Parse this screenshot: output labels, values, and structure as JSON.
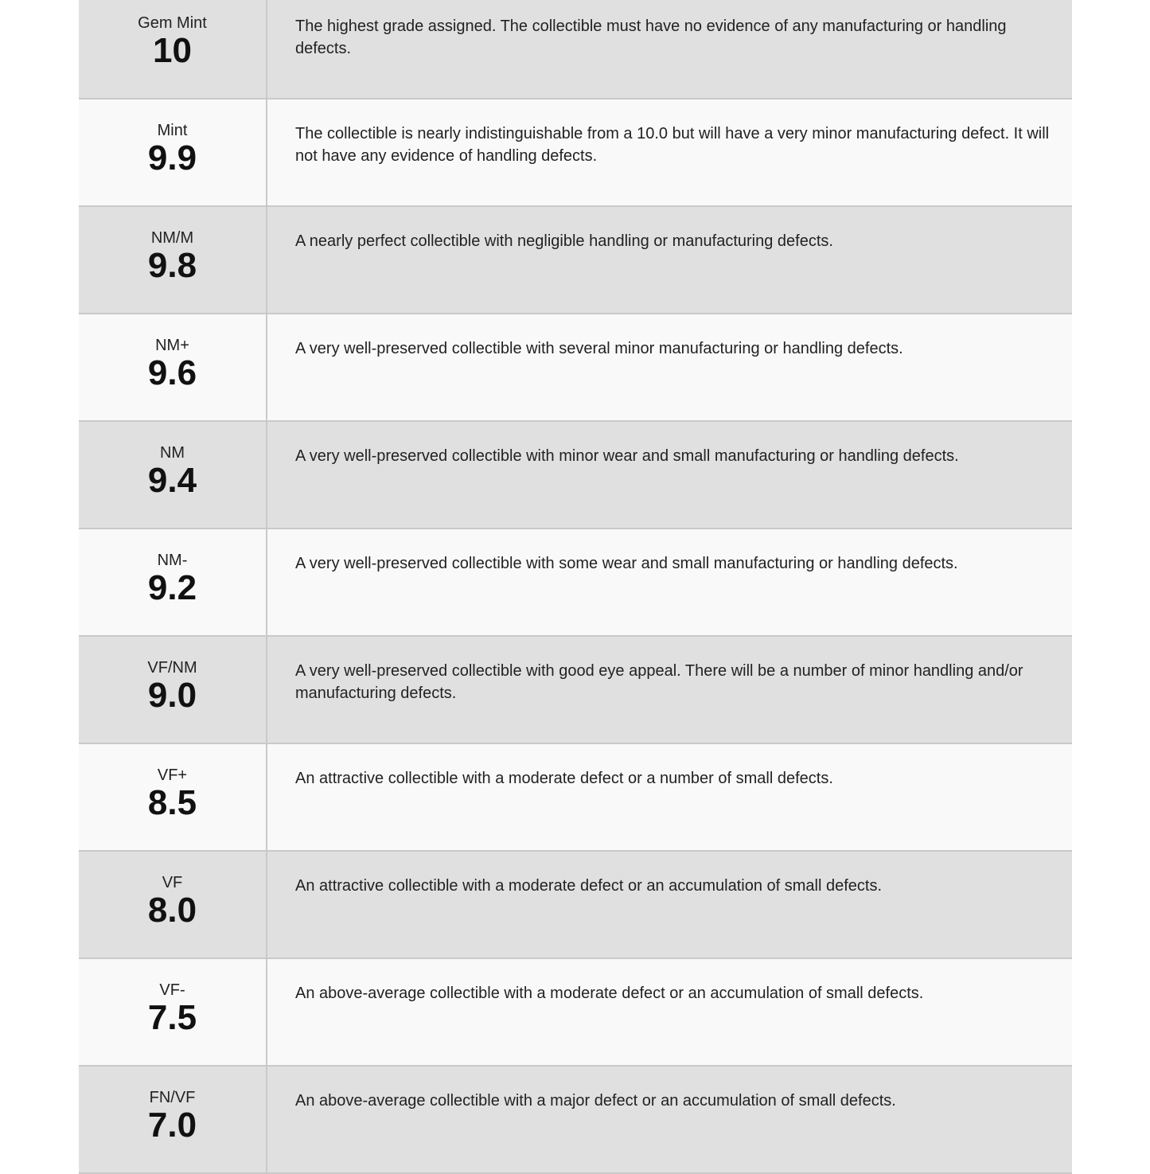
{
  "grades": [
    {
      "label": "Gem Mint",
      "value": "10",
      "description": "The highest grade assigned. The collectible must have no evidence of any manufacturing or handling defects."
    },
    {
      "label": "Mint",
      "value": "9.9",
      "description": "The collectible is nearly indistinguishable from a 10.0 but will have a very minor manufacturing defect. It will not have any evidence of handling defects."
    },
    {
      "label": "NM/M",
      "value": "9.8",
      "description": "A nearly perfect collectible with negligible handling or manufacturing defects."
    },
    {
      "label": "NM+",
      "value": "9.6",
      "description": "A very well-preserved collectible with several minor manufacturing or handling defects."
    },
    {
      "label": "NM",
      "value": "9.4",
      "description": "A very well-preserved collectible with minor wear and small manufacturing or handling defects."
    },
    {
      "label": "NM-",
      "value": "9.2",
      "description": "A very well-preserved collectible with some wear and small manufacturing or handling defects."
    },
    {
      "label": "VF/NM",
      "value": "9.0",
      "description": "A very well-preserved collectible with good eye appeal. There will be a number of minor handling and/or manufacturing defects."
    },
    {
      "label": "VF+",
      "value": "8.5",
      "description": "An attractive collectible with a moderate defect or a number of small defects."
    },
    {
      "label": "VF",
      "value": "8.0",
      "description": "An attractive collectible with a moderate defect or an accumulation of small defects."
    },
    {
      "label": "VF-",
      "value": "7.5",
      "description": "An above-average collectible with a moderate defect or an accumulation of small defects."
    },
    {
      "label": "FN/VF",
      "value": "7.0",
      "description": "An above-average collectible with a major defect or an accumulation of small defects."
    }
  ]
}
